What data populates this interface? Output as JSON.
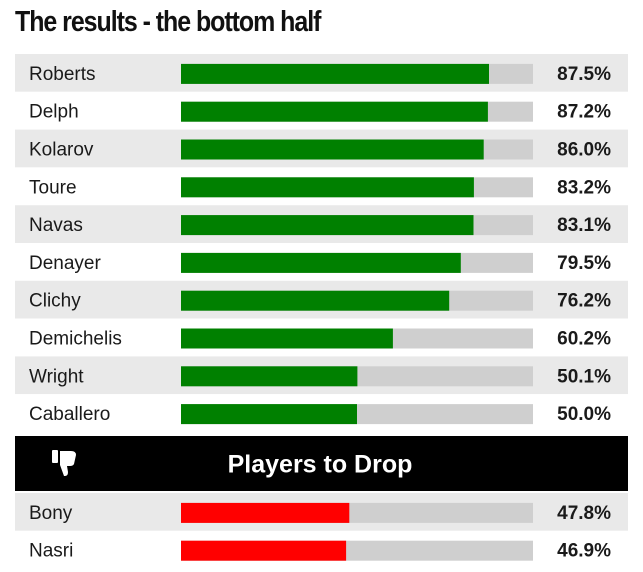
{
  "title": "The results - the bottom half",
  "chart_data": {
    "type": "bar",
    "orientation": "horizontal",
    "title": "The results - the bottom half",
    "xlim": [
      0,
      100
    ],
    "unit": "%",
    "colors": {
      "keep": "#008000",
      "drop": "#ff0000",
      "track": "#cfcfcf",
      "banner": "#000000"
    },
    "groups": [
      {
        "heading": "",
        "color": "#008000",
        "categories": [
          "Roberts",
          "Delph",
          "Kolarov",
          "Toure",
          "Navas",
          "Denayer",
          "Clichy",
          "Demichelis",
          "Wright",
          "Caballero"
        ],
        "values": [
          87.5,
          87.2,
          86.0,
          83.2,
          83.1,
          79.5,
          76.2,
          60.2,
          50.1,
          50.0
        ],
        "labels": [
          "87.5%",
          "87.2%",
          "86.0%",
          "83.2%",
          "83.1%",
          "79.5%",
          "76.2%",
          "60.2%",
          "50.1%",
          "50.0%"
        ]
      },
      {
        "heading": "Players to Drop",
        "heading_icon": "thumbs-down-icon",
        "color": "#ff0000",
        "categories": [
          "Bony",
          "Nasri"
        ],
        "values": [
          47.8,
          46.9
        ],
        "labels": [
          "47.8%",
          "46.9%"
        ]
      }
    ]
  }
}
